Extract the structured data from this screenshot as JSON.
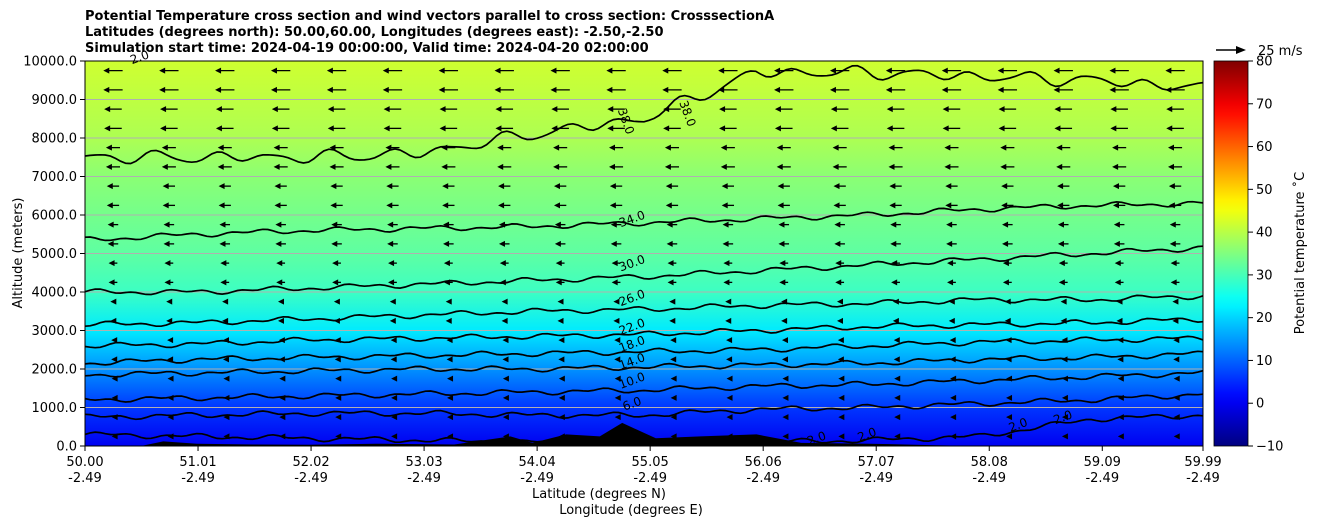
{
  "title_lines": [
    "Potential Temperature cross section and wind vectors parallel to cross section: CrosssectionA",
    "Latitudes (degrees north): 50.00,60.00, Longitudes (degrees east): -2.50,-2.50",
    "Simulation start time: 2024-04-19 00:00:00, Valid time: 2024-04-20 02:00:00"
  ],
  "chart_data": {
    "type": "heatmap",
    "ylabel": "Altitude (meters)",
    "xlabel_lines": [
      "Latitude (degrees N)",
      "Longitude (degrees E)"
    ],
    "ylim": [
      0,
      10000
    ],
    "xlim": [
      50.0,
      59.99
    ],
    "yticks": [
      {
        "value": 0,
        "label": "0.0"
      },
      {
        "value": 1000,
        "label": "1000.0"
      },
      {
        "value": 2000,
        "label": "2000.0"
      },
      {
        "value": 3000,
        "label": "3000.0"
      },
      {
        "value": 4000,
        "label": "4000.0"
      },
      {
        "value": 5000,
        "label": "5000.0"
      },
      {
        "value": 6000,
        "label": "6000.0"
      },
      {
        "value": 7000,
        "label": "7000.0"
      },
      {
        "value": 8000,
        "label": "8000.0"
      },
      {
        "value": 9000,
        "label": "9000.0"
      },
      {
        "value": 10000,
        "label": "10000.0"
      }
    ],
    "xticks": [
      {
        "value": 50.0,
        "lat": "50.00",
        "lon": "-2.49"
      },
      {
        "value": 51.01,
        "lat": "51.01",
        "lon": "-2.49"
      },
      {
        "value": 52.02,
        "lat": "52.02",
        "lon": "-2.49"
      },
      {
        "value": 53.03,
        "lat": "53.03",
        "lon": "-2.49"
      },
      {
        "value": 54.04,
        "lat": "54.04",
        "lon": "-2.49"
      },
      {
        "value": 55.05,
        "lat": "55.05",
        "lon": "-2.49"
      },
      {
        "value": 56.06,
        "lat": "56.06",
        "lon": "-2.49"
      },
      {
        "value": 57.07,
        "lat": "57.07",
        "lon": "-2.49"
      },
      {
        "value": 58.08,
        "lat": "58.08",
        "lon": "-2.49"
      },
      {
        "value": 59.09,
        "lat": "59.09",
        "lon": "-2.49"
      },
      {
        "value": 59.99,
        "lat": "59.99",
        "lon": "-2.49"
      }
    ],
    "grid": "horizontal",
    "contours": [
      {
        "level": 2.0,
        "label": "2.0",
        "heights": [
          300,
          250,
          200,
          150,
          100,
          100,
          100,
          150,
          250,
          700,
          800
        ]
      },
      {
        "level": 6.0,
        "label": "6.0",
        "heights": [
          750,
          800,
          850,
          850,
          800,
          800,
          950,
          1000,
          1100,
          1200,
          1350
        ]
      },
      {
        "level": 10.0,
        "label": "10.0",
        "heights": [
          1200,
          1250,
          1300,
          1350,
          1400,
          1450,
          1550,
          1600,
          1700,
          1800,
          1900
        ]
      },
      {
        "level": 14.0,
        "label": "14.0",
        "heights": [
          1850,
          1900,
          1950,
          2000,
          2000,
          2050,
          2100,
          2150,
          2250,
          2300,
          2400
        ]
      },
      {
        "level": 18.0,
        "label": "18.0",
        "heights": [
          2150,
          2250,
          2300,
          2350,
          2400,
          2450,
          2500,
          2600,
          2700,
          2750,
          2800
        ]
      },
      {
        "level": 22.0,
        "label": "22.0",
        "heights": [
          2600,
          2650,
          2750,
          2800,
          2850,
          2900,
          3000,
          3100,
          3150,
          3200,
          3300
        ]
      },
      {
        "level": 26.0,
        "label": "26.0",
        "heights": [
          3150,
          3200,
          3300,
          3400,
          3500,
          3550,
          3650,
          3700,
          3800,
          3800,
          3900
        ]
      },
      {
        "level": 30.0,
        "label": "30.0",
        "heights": [
          4000,
          4000,
          4100,
          4200,
          4300,
          4400,
          4550,
          4700,
          4850,
          5000,
          5150
        ]
      },
      {
        "level": 34.0,
        "label": "34.0",
        "heights": [
          5350,
          5500,
          5600,
          5650,
          5700,
          5800,
          5900,
          6000,
          6150,
          6250,
          6300
        ]
      },
      {
        "level": 38.0,
        "label": "38.0",
        "heights": [
          7500,
          7500,
          7500,
          7600,
          8100,
          8500,
          9700,
          9700,
          9600,
          9500,
          9300
        ]
      }
    ],
    "contour_labels": [
      {
        "text": "2.0",
        "x": 50.5,
        "y": 10000
      },
      {
        "text": "38.0",
        "x": 54.8,
        "y": 8400
      },
      {
        "text": "38.0",
        "x": 55.35,
        "y": 8600
      },
      {
        "text": "34.0",
        "x": 54.9,
        "y": 5800
      },
      {
        "text": "30.0",
        "x": 54.9,
        "y": 4650
      },
      {
        "text": "26.0",
        "x": 54.9,
        "y": 3750
      },
      {
        "text": "22.0",
        "x": 54.9,
        "y": 3000
      },
      {
        "text": "18.0",
        "x": 54.9,
        "y": 2550
      },
      {
        "text": "14.0",
        "x": 54.9,
        "y": 2100
      },
      {
        "text": "10.0",
        "x": 54.9,
        "y": 1600
      },
      {
        "text": "6.0",
        "x": 54.9,
        "y": 1000
      },
      {
        "text": "2.0",
        "x": 56.55,
        "y": 100
      },
      {
        "text": "2.0",
        "x": 57.0,
        "y": 200
      },
      {
        "text": "2.0",
        "x": 58.35,
        "y": 450
      },
      {
        "text": "2.0",
        "x": 58.75,
        "y": 650
      }
    ],
    "terrain": [
      {
        "x": 50.5,
        "h": 0
      },
      {
        "x": 50.7,
        "h": 120
      },
      {
        "x": 51.0,
        "h": 60
      },
      {
        "x": 51.5,
        "h": 40
      },
      {
        "x": 52.0,
        "h": 30
      },
      {
        "x": 52.6,
        "h": 60
      },
      {
        "x": 53.3,
        "h": 40
      },
      {
        "x": 53.8,
        "h": 250
      },
      {
        "x": 54.0,
        "h": 80
      },
      {
        "x": 54.3,
        "h": 300
      },
      {
        "x": 54.6,
        "h": 250
      },
      {
        "x": 54.8,
        "h": 600
      },
      {
        "x": 55.1,
        "h": 200
      },
      {
        "x": 55.5,
        "h": 250
      },
      {
        "x": 56.0,
        "h": 300
      },
      {
        "x": 56.4,
        "h": 80
      },
      {
        "x": 57.0,
        "h": 60
      },
      {
        "x": 57.6,
        "h": 20
      },
      {
        "x": 58.0,
        "h": 0
      }
    ],
    "colorbar": {
      "label": "Potential temperature $^\\circ$C",
      "label_display": "Potential temperature ˚C",
      "min": -10,
      "max": 80,
      "ticks": [
        -10,
        0,
        10,
        20,
        30,
        40,
        50,
        60,
        70,
        80
      ],
      "colormap": "jet"
    },
    "quiver_key": {
      "label": "25 m/s",
      "value": 25
    },
    "wind": {
      "direction": "toward decreasing latitude",
      "speed_by_altitude": [
        {
          "altitude": 500,
          "speed": 3
        },
        {
          "altitude": 1500,
          "speed": 3
        },
        {
          "altitude": 2500,
          "speed": 4
        },
        {
          "altitude": 3500,
          "speed": 6
        },
        {
          "altitude": 4500,
          "speed": 10
        },
        {
          "altitude": 5500,
          "speed": 12
        },
        {
          "altitude": 6500,
          "speed": 14
        },
        {
          "altitude": 7500,
          "speed": 16
        },
        {
          "altitude": 8500,
          "speed": 20
        },
        {
          "altitude": 9500,
          "speed": 22
        }
      ]
    }
  }
}
